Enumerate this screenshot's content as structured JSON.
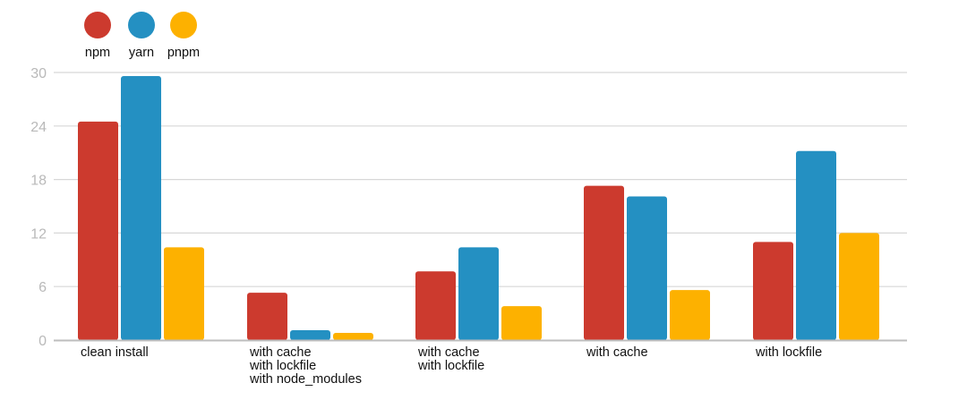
{
  "chart_data": {
    "type": "bar",
    "categories": [
      [
        "clean install"
      ],
      [
        "with cache",
        "with lockfile",
        "with node_modules"
      ],
      [
        "with cache",
        "with lockfile"
      ],
      [
        "with cache"
      ],
      [
        "with lockfile"
      ]
    ],
    "series": [
      {
        "name": "npm",
        "color": "#cc3a2e",
        "values": [
          24.5,
          5.3,
          7.7,
          17.3,
          11.0
        ]
      },
      {
        "name": "yarn",
        "color": "#2490c2",
        "values": [
          29.6,
          1.1,
          10.4,
          16.1,
          21.2
        ]
      },
      {
        "name": "pnpm",
        "color": "#fdb100",
        "values": [
          10.4,
          0.8,
          3.8,
          5.6,
          12.0
        ]
      }
    ],
    "y_ticks": [
      0,
      6,
      12,
      18,
      24,
      30
    ],
    "ylim": [
      0,
      30
    ],
    "grid": true,
    "legend_position": "top-left",
    "title": "",
    "xlabel": "",
    "ylabel": ""
  }
}
